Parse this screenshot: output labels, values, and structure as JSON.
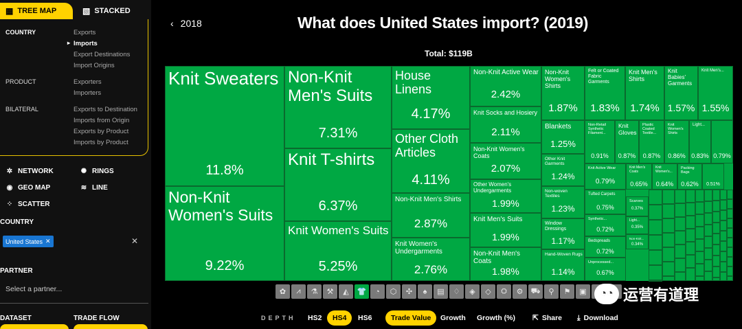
{
  "sidebar": {
    "tabs": [
      {
        "label": "TREE MAP",
        "icon": "treemap-icon"
      },
      {
        "label": "STACKED",
        "icon": "stacked-icon"
      }
    ],
    "categories": {
      "country": "COUNTRY",
      "product": "PRODUCT",
      "bilateral": "BILATERAL"
    },
    "country_items": [
      "Exports",
      "Imports",
      "Export Destinations",
      "Import Origins"
    ],
    "product_items": [
      "Exporters",
      "Importers"
    ],
    "bilateral_items": [
      "Exports to Destination",
      "Imports from Origin",
      "Exports by Product",
      "Imports by Product"
    ],
    "viz_buttons": [
      {
        "label": "NETWORK",
        "icon": "network-icon",
        "glyph": "✲"
      },
      {
        "label": "RINGS",
        "icon": "rings-icon",
        "glyph": "✺"
      },
      {
        "label": "GEO MAP",
        "icon": "geo-map-icon",
        "glyph": "◉"
      },
      {
        "label": "LINE",
        "icon": "line-icon",
        "glyph": "≋"
      },
      {
        "label": "SCATTER",
        "icon": "scatter-icon",
        "glyph": "⁘"
      }
    ],
    "country_heading": "COUNTRY",
    "country_chip": "United States",
    "partner_heading": "PARTNER",
    "partner_placeholder": "Select a partner...",
    "dataset_heading": "DATASET",
    "trade_flow_heading": "TRADE FLOW"
  },
  "header": {
    "back_year": "2018",
    "title": "What does United States import? (2019)",
    "total": "Total: $119B"
  },
  "chart_data": {
    "type": "treemap",
    "title": "What does United States import? (2019)",
    "total": "Total: $119B",
    "color": "#00a843",
    "cells": [
      {
        "name": "Knit Sweaters",
        "pct": "11.8%"
      },
      {
        "name": "Non-Knit Women's Suits",
        "pct": "9.22%"
      },
      {
        "name": "Non-Knit Men's Suits",
        "pct": "7.31%"
      },
      {
        "name": "Knit T-shirts",
        "pct": "6.37%"
      },
      {
        "name": "Knit Women's Suits",
        "pct": "5.25%"
      },
      {
        "name": "House Linens",
        "pct": "4.17%"
      },
      {
        "name": "Other Cloth Articles",
        "pct": "4.11%"
      },
      {
        "name": "Non-Knit Men's Shirts",
        "pct": "2.87%"
      },
      {
        "name": "Knit Women's Undergarments",
        "pct": "2.76%"
      },
      {
        "name": "Non-Knit Active Wear",
        "pct": "2.42%"
      },
      {
        "name": "Knit Socks and Hosiery",
        "pct": "2.11%"
      },
      {
        "name": "Non-Knit Women's Coats",
        "pct": "2.07%"
      },
      {
        "name": "Other Women's Undergarments",
        "pct": "1.99%"
      },
      {
        "name": "Knit Men's Suits",
        "pct": "1.99%"
      },
      {
        "name": "Non-Knit Men's Coats",
        "pct": "1.98%"
      },
      {
        "name": "Non-Knit Women's Shirts",
        "pct": "1.87%"
      },
      {
        "name": "Blankets",
        "pct": "1.25%"
      },
      {
        "name": "Other Knit Garments",
        "pct": "1.24%"
      },
      {
        "name": "Non-woven Textiles",
        "pct": "1.23%"
      },
      {
        "name": "Window Dressings",
        "pct": "1.17%"
      },
      {
        "name": "Hand-Woven Rugs",
        "pct": "1.14%"
      },
      {
        "name": "Felt or Coated Fabric Garments",
        "pct": "1.83%"
      },
      {
        "name": "Knit Men's Shirts",
        "pct": "1.74%"
      },
      {
        "name": "Knit Babies' Garments",
        "pct": "1.57%"
      },
      {
        "name": "Knit Men's...",
        "pct": "1.55%"
      },
      {
        "name": "Non-Retail Synthetic Filament...",
        "pct": "0.91%"
      },
      {
        "name": "Knit Gloves",
        "pct": "0.87%"
      },
      {
        "name": "Plastic Coated Textile...",
        "pct": "0.87%"
      },
      {
        "name": "Knit Women's Shirts",
        "pct": "0.86%"
      },
      {
        "name": "Light...",
        "pct": "0.83%"
      },
      {
        "name": "",
        "pct": "0.79%"
      },
      {
        "name": "Knit Active Wear",
        "pct": "0.79%"
      },
      {
        "name": "Knit Men's Coats",
        "pct": "0.65%"
      },
      {
        "name": "Knit Women's...",
        "pct": "0.64%"
      },
      {
        "name": "Packing Bags",
        "pct": "0.62%"
      },
      {
        "name": "",
        "pct": "0.51%"
      },
      {
        "name": "Tufted Carpets",
        "pct": "0.75%"
      },
      {
        "name": "Synthetic...",
        "pct": "0.72%"
      },
      {
        "name": "Bedspreads",
        "pct": "0.72%"
      },
      {
        "name": "Unprocessed...",
        "pct": "0.67%"
      },
      {
        "name": "Scarves",
        "pct": "0.37%"
      },
      {
        "name": "Light...",
        "pct": "0.35%"
      },
      {
        "name": "Non-Knit...",
        "pct": "0.34%"
      }
    ]
  },
  "category_icons": [
    {
      "icon": "animal-products-icon",
      "glyph": "✿"
    },
    {
      "icon": "vegetable-products-icon",
      "glyph": "⩘"
    },
    {
      "icon": "animal-fats-icon",
      "glyph": "⚗"
    },
    {
      "icon": "foodstuffs-icon",
      "glyph": "⚒"
    },
    {
      "icon": "mineral-products-icon",
      "glyph": "◭"
    },
    {
      "icon": "textiles-icon",
      "glyph": "👕"
    },
    {
      "icon": "chemical-products-icon",
      "glyph": "◔"
    },
    {
      "icon": "plastics-icon",
      "glyph": "⬡"
    },
    {
      "icon": "animal-hides-icon",
      "glyph": "✣"
    },
    {
      "icon": "wood-products-icon",
      "glyph": "♠"
    },
    {
      "icon": "paper-goods-icon",
      "glyph": "▤"
    },
    {
      "icon": "footwear-icon",
      "glyph": "♢"
    },
    {
      "icon": "stone-glass-icon",
      "glyph": "◈"
    },
    {
      "icon": "precious-metals-icon",
      "glyph": "◇"
    },
    {
      "icon": "metals-icon",
      "glyph": "⛭"
    },
    {
      "icon": "machines-icon",
      "glyph": "⚙"
    },
    {
      "icon": "transportation-icon",
      "glyph": "⛟"
    },
    {
      "icon": "instruments-icon",
      "glyph": "⚲"
    },
    {
      "icon": "weapons-icon",
      "glyph": "⚑"
    },
    {
      "icon": "miscellaneous-icon",
      "glyph": "▣"
    },
    {
      "icon": "arts-antiques-icon",
      "glyph": "♜"
    },
    {
      "icon": "unspecified-icon",
      "glyph": "☐"
    }
  ],
  "controls": {
    "depth": "DEPTH",
    "hs2": "HS2",
    "hs4": "HS4",
    "hs6": "HS6",
    "trade_value": "Trade Value",
    "growth": "Growth",
    "growth_pct": "Growth (%)",
    "share": "Share",
    "download": "Download"
  },
  "watermark": {
    "text": "运营有道理",
    "icon": "wechat-logo-icon"
  },
  "colors": {
    "accent": "#ffd200",
    "textiles": "#00a843",
    "chip": "#1976d2"
  }
}
